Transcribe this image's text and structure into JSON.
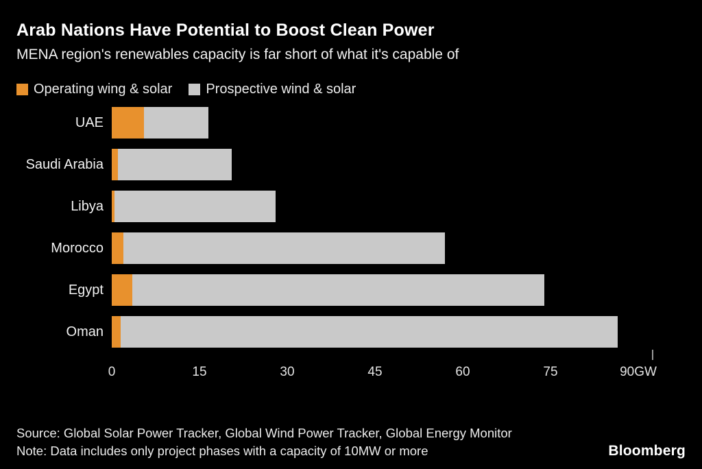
{
  "header": {
    "title": "Arab Nations Have Potential to Boost Clean Power",
    "subtitle": "MENA region's renewables capacity is far short of what it's capable of"
  },
  "legend": {
    "items": [
      {
        "name": "operating-wind-solar",
        "label": "Operating wing & solar",
        "color": "#E8912D"
      },
      {
        "name": "prospective-wind-solar",
        "label": "Prospective wind & solar",
        "color": "#C9C9C9"
      }
    ]
  },
  "chart_data": {
    "type": "bar",
    "orientation": "horizontal",
    "stacked": true,
    "title": "Arab Nations Have Potential to Boost Clean Power",
    "subtitle": "MENA region's renewables capacity is far short of what it's capable of",
    "unit": "GW",
    "xlim": [
      0,
      90
    ],
    "grid": false,
    "legend_position": "top",
    "categories": [
      "UAE",
      "Saudi Arabia",
      "Libya",
      "Morocco",
      "Egypt",
      "Oman"
    ],
    "series": [
      {
        "name": "Operating wing & solar",
        "color": "#E8912D",
        "values": [
          5.5,
          1,
          0.5,
          2,
          3.5,
          1.5
        ]
      },
      {
        "name": "Prospective wind & solar",
        "color": "#C9C9C9",
        "values": [
          11,
          19.5,
          27.5,
          55,
          70.5,
          85
        ]
      }
    ],
    "totals": [
      16.5,
      20.5,
      28,
      57,
      74,
      86.5
    ],
    "xticks": [
      {
        "value": 0,
        "label": "0"
      },
      {
        "value": 15,
        "label": "15"
      },
      {
        "value": 30,
        "label": "30"
      },
      {
        "value": 45,
        "label": "45"
      },
      {
        "value": 60,
        "label": "60"
      },
      {
        "value": 75,
        "label": "75"
      },
      {
        "value": 90,
        "label": "90GW"
      }
    ]
  },
  "footer": {
    "source": "Source: Global Solar Power Tracker, Global Wind Power Tracker, Global Energy Monitor",
    "note": "Note: Data includes only project phases with a capacity of 10MW or more",
    "brand": "Bloomberg"
  }
}
